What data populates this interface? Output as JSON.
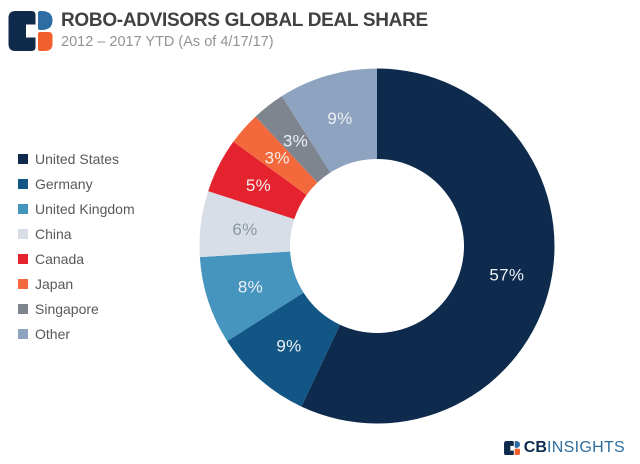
{
  "header": {
    "title": "ROBO-ADVISORS GLOBAL DEAL SHARE",
    "subtitle": "2012 – 2017 YTD (As of 4/17/17)"
  },
  "chart_data": {
    "type": "pie",
    "donut": true,
    "title": "ROBO-ADVISORS GLOBAL DEAL SHARE",
    "subtitle": "2012 – 2017 YTD (As of 4/17/17)",
    "unit": "%",
    "start_angle_deg": 0,
    "direction": "clockwise",
    "legend_position": "left",
    "categories": [
      "United States",
      "Germany",
      "United Kingdom",
      "China",
      "Canada",
      "Japan",
      "Singapore",
      "Other"
    ],
    "values": [
      57,
      9,
      8,
      6,
      5,
      3,
      3,
      9
    ],
    "slice_labels": [
      "57%",
      "9%",
      "8%",
      "6%",
      "5%",
      "3%",
      "3%",
      "9%"
    ],
    "colors": [
      "#0e2b4d",
      "#115685",
      "#4695bf",
      "#d7dee8",
      "#e5232f",
      "#f4693b",
      "#7e858f",
      "#8ea3bf"
    ],
    "slice_label_colors": [
      "#edf0f4",
      "#edf0f4",
      "#edf0f4",
      "#8c96a1",
      "#f4eced",
      "#f6efec",
      "#edf0f4",
      "#edf0f4"
    ]
  },
  "footer": {
    "brand_cb": "CB",
    "brand_insights": "INSIGHTS",
    "cb_color": "#0e2b4d",
    "insights_color": "#2e6d9e"
  },
  "brand_colors": {
    "navy": "#102a4c",
    "blue": "#2e6da4",
    "orange": "#f05f2d"
  },
  "text_colors": {
    "title": "#414042",
    "subtitle": "#919396",
    "legend": "#58595b"
  }
}
